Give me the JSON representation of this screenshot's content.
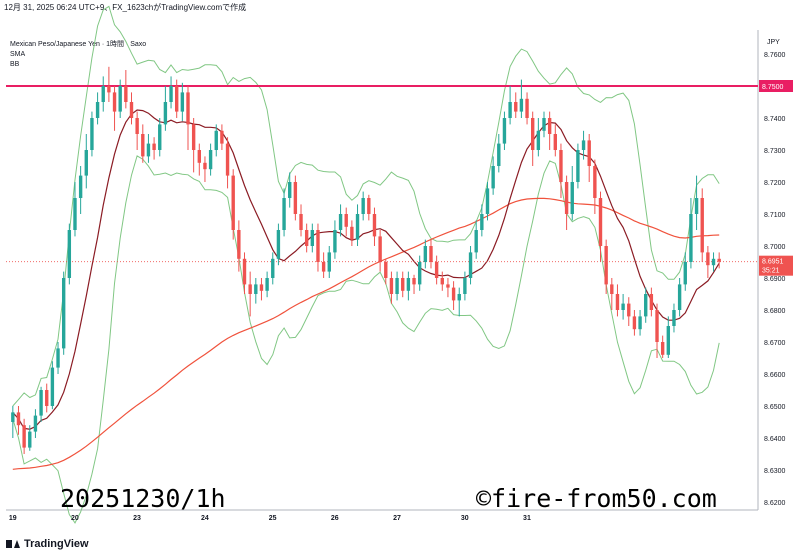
{
  "header": {
    "text": "12月 31, 2025 06:24 UTC+9、FX_1623chがTradingView.comで作成"
  },
  "legend": {
    "symbol": "Mexican Peso/Japanese Yen · 1時間 · Saxo",
    "sma": "SMA",
    "bb": "BB"
  },
  "axis": {
    "currency": "JPY"
  },
  "price_label": {
    "price": "8.6951",
    "countdown": "35:21"
  },
  "resistance_label": "8.7500",
  "watermark": {
    "left": "20251230/1h",
    "right": "©fire-from50.com"
  },
  "footer": {
    "brand": "TradingView"
  },
  "colors": {
    "up": "#26a69a",
    "down": "#ef5350",
    "resistance": "#e91e63",
    "bb": "#81c784",
    "sma_short": "#8b1c24",
    "sma_long": "#f0523c"
  },
  "chart_data": {
    "type": "candlestick",
    "y_ticks": [
      "8.7600",
      "8.7500",
      "8.7400",
      "8.7300",
      "8.7200",
      "8.7100",
      "8.7000",
      "8.6900",
      "8.6800",
      "8.6700",
      "8.6600",
      "8.6500",
      "8.6400",
      "8.6300",
      "8.6200"
    ],
    "ylim": [
      8.6175,
      8.7675
    ],
    "x_ticks": [
      "19",
      "20",
      "23",
      "24",
      "25",
      "26",
      "27",
      "30",
      "31"
    ],
    "resistance": 8.75,
    "last_price": 8.6951,
    "candles": [
      [
        8.645,
        8.648,
        8.64,
        8.65
      ],
      [
        8.648,
        8.644,
        8.641,
        8.65
      ],
      [
        8.644,
        8.637,
        8.635,
        8.646
      ],
      [
        8.637,
        8.642,
        8.636,
        8.644
      ],
      [
        8.642,
        8.647,
        8.64,
        8.649
      ],
      [
        8.647,
        8.655,
        8.645,
        8.656
      ],
      [
        8.655,
        8.65,
        8.648,
        8.657
      ],
      [
        8.65,
        8.662,
        8.649,
        8.664
      ],
      [
        8.662,
        8.668,
        8.66,
        8.67
      ],
      [
        8.668,
        8.69,
        8.666,
        8.692
      ],
      [
        8.69,
        8.705,
        8.688,
        8.707
      ],
      [
        8.705,
        8.715,
        8.703,
        8.72
      ],
      [
        8.715,
        8.722,
        8.71,
        8.725
      ],
      [
        8.722,
        8.73,
        8.718,
        8.735
      ],
      [
        8.73,
        8.74,
        8.728,
        8.742
      ],
      [
        8.74,
        8.745,
        8.738,
        8.748
      ],
      [
        8.745,
        8.75,
        8.742,
        8.753
      ],
      [
        8.75,
        8.748,
        8.745,
        8.756
      ],
      [
        8.748,
        8.742,
        8.736,
        8.75
      ],
      [
        8.742,
        8.75,
        8.74,
        8.752
      ],
      [
        8.75,
        8.745,
        8.743,
        8.755
      ],
      [
        8.745,
        8.74,
        8.738,
        8.748
      ],
      [
        8.74,
        8.735,
        8.73,
        8.742
      ],
      [
        8.735,
        8.728,
        8.726,
        8.738
      ],
      [
        8.728,
        8.732,
        8.726,
        8.735
      ],
      [
        8.732,
        8.73,
        8.727,
        8.734
      ],
      [
        8.73,
        8.738,
        8.728,
        8.74
      ],
      [
        8.738,
        8.745,
        8.736,
        8.75
      ],
      [
        8.745,
        8.75,
        8.743,
        8.753
      ],
      [
        8.75,
        8.742,
        8.74,
        8.752
      ],
      [
        8.742,
        8.748,
        8.739,
        8.751
      ],
      [
        8.748,
        8.738,
        8.73,
        8.75
      ],
      [
        8.738,
        8.73,
        8.723,
        8.74
      ],
      [
        8.73,
        8.726,
        8.722,
        8.732
      ],
      [
        8.726,
        8.724,
        8.72,
        8.728
      ],
      [
        8.724,
        8.73,
        8.722,
        8.732
      ],
      [
        8.73,
        8.736,
        8.728,
        8.738
      ],
      [
        8.736,
        8.732,
        8.73,
        8.738
      ],
      [
        8.732,
        8.722,
        8.718,
        8.734
      ],
      [
        8.722,
        8.705,
        8.702,
        8.724
      ],
      [
        8.705,
        8.696,
        8.692,
        8.708
      ],
      [
        8.696,
        8.688,
        8.685,
        8.698
      ],
      [
        8.688,
        8.685,
        8.678,
        8.692
      ],
      [
        8.685,
        8.688,
        8.682,
        8.69
      ],
      [
        8.688,
        8.686,
        8.683,
        8.69
      ],
      [
        8.686,
        8.69,
        8.684,
        8.692
      ],
      [
        8.69,
        8.696,
        8.688,
        8.698
      ],
      [
        8.696,
        8.705,
        8.694,
        8.707
      ],
      [
        8.705,
        8.715,
        8.703,
        8.718
      ],
      [
        8.715,
        8.72,
        8.712,
        8.723
      ],
      [
        8.72,
        8.71,
        8.708,
        8.722
      ],
      [
        8.71,
        8.705,
        8.703,
        8.713
      ],
      [
        8.705,
        8.7,
        8.698,
        8.707
      ],
      [
        8.7,
        8.705,
        8.698,
        8.707
      ],
      [
        8.705,
        8.695,
        8.692,
        8.707
      ],
      [
        8.695,
        8.692,
        8.69,
        8.698
      ],
      [
        8.692,
        8.698,
        8.69,
        8.7
      ],
      [
        8.698,
        8.705,
        8.696,
        8.708
      ],
      [
        8.705,
        8.71,
        8.703,
        8.713
      ],
      [
        8.71,
        8.706,
        8.703,
        8.712
      ],
      [
        8.706,
        8.702,
        8.7,
        8.708
      ],
      [
        8.702,
        8.71,
        8.7,
        8.713
      ],
      [
        8.71,
        8.715,
        8.708,
        8.717
      ],
      [
        8.715,
        8.71,
        8.708,
        8.716
      ],
      [
        8.71,
        8.703,
        8.7,
        8.712
      ],
      [
        8.703,
        8.695,
        8.692,
        8.705
      ],
      [
        8.695,
        8.69,
        8.688,
        8.696
      ],
      [
        8.69,
        8.685,
        8.682,
        8.692
      ],
      [
        8.685,
        8.69,
        8.683,
        8.692
      ],
      [
        8.69,
        8.686,
        8.684,
        8.692
      ],
      [
        8.686,
        8.69,
        8.683,
        8.692
      ],
      [
        8.69,
        8.688,
        8.685,
        8.691
      ],
      [
        8.688,
        8.695,
        8.686,
        8.697
      ],
      [
        8.695,
        8.7,
        8.693,
        8.702
      ],
      [
        8.7,
        8.695,
        8.693,
        8.702
      ],
      [
        8.695,
        8.69,
        8.688,
        8.697
      ],
      [
        8.69,
        8.688,
        8.686,
        8.692
      ],
      [
        8.688,
        8.687,
        8.684,
        8.69
      ],
      [
        8.687,
        8.683,
        8.68,
        8.689
      ],
      [
        8.683,
        8.685,
        8.678,
        8.687
      ],
      [
        8.685,
        8.69,
        8.683,
        8.692
      ],
      [
        8.69,
        8.698,
        8.688,
        8.7
      ],
      [
        8.698,
        8.705,
        8.696,
        8.708
      ],
      [
        8.705,
        8.71,
        8.703,
        8.713
      ],
      [
        8.71,
        8.718,
        8.708,
        8.72
      ],
      [
        8.718,
        8.725,
        8.716,
        8.728
      ],
      [
        8.725,
        8.732,
        8.723,
        8.735
      ],
      [
        8.732,
        8.74,
        8.73,
        8.742
      ],
      [
        8.74,
        8.745,
        8.738,
        8.75
      ],
      [
        8.745,
        8.742,
        8.74,
        8.748
      ],
      [
        8.742,
        8.746,
        8.74,
        8.752
      ],
      [
        8.746,
        8.74,
        8.738,
        8.748
      ],
      [
        8.74,
        8.73,
        8.725,
        8.742
      ],
      [
        8.73,
        8.736,
        8.728,
        8.74
      ],
      [
        8.736,
        8.74,
        8.734,
        8.742
      ],
      [
        8.74,
        8.735,
        8.73,
        8.742
      ],
      [
        8.735,
        8.73,
        8.728,
        8.738
      ],
      [
        8.73,
        8.72,
        8.715,
        8.732
      ],
      [
        8.72,
        8.71,
        8.705,
        8.722
      ],
      [
        8.71,
        8.72,
        8.708,
        8.725
      ],
      [
        8.72,
        8.73,
        8.718,
        8.732
      ],
      [
        8.73,
        8.733,
        8.727,
        8.736
      ],
      [
        8.733,
        8.725,
        8.72,
        8.735
      ],
      [
        8.725,
        8.715,
        8.71,
        8.727
      ],
      [
        8.715,
        8.7,
        8.695,
        8.717
      ],
      [
        8.7,
        8.688,
        8.685,
        8.702
      ],
      [
        8.688,
        8.685,
        8.68,
        8.69
      ],
      [
        8.685,
        8.68,
        8.678,
        8.688
      ],
      [
        8.68,
        8.682,
        8.677,
        8.685
      ],
      [
        8.682,
        8.678,
        8.675,
        8.684
      ],
      [
        8.678,
        8.674,
        8.672,
        8.68
      ],
      [
        8.674,
        8.678,
        8.672,
        8.68
      ],
      [
        8.678,
        8.685,
        8.676,
        8.687
      ],
      [
        8.685,
        8.68,
        8.678,
        8.687
      ],
      [
        8.68,
        8.67,
        8.665,
        8.682
      ],
      [
        8.67,
        8.666,
        8.665,
        8.672
      ],
      [
        8.666,
        8.675,
        8.665,
        8.678
      ],
      [
        8.675,
        8.68,
        8.673,
        8.682
      ],
      [
        8.68,
        8.688,
        8.678,
        8.69
      ],
      [
        8.688,
        8.695,
        8.686,
        8.698
      ],
      [
        8.695,
        8.71,
        8.693,
        8.715
      ],
      [
        8.71,
        8.715,
        8.705,
        8.722
      ],
      [
        8.715,
        8.698,
        8.695,
        8.718
      ],
      [
        8.698,
        8.694,
        8.69,
        8.7
      ],
      [
        8.694,
        8.696,
        8.692,
        8.698
      ],
      [
        8.696,
        8.6951,
        8.693,
        8.698
      ]
    ]
  }
}
